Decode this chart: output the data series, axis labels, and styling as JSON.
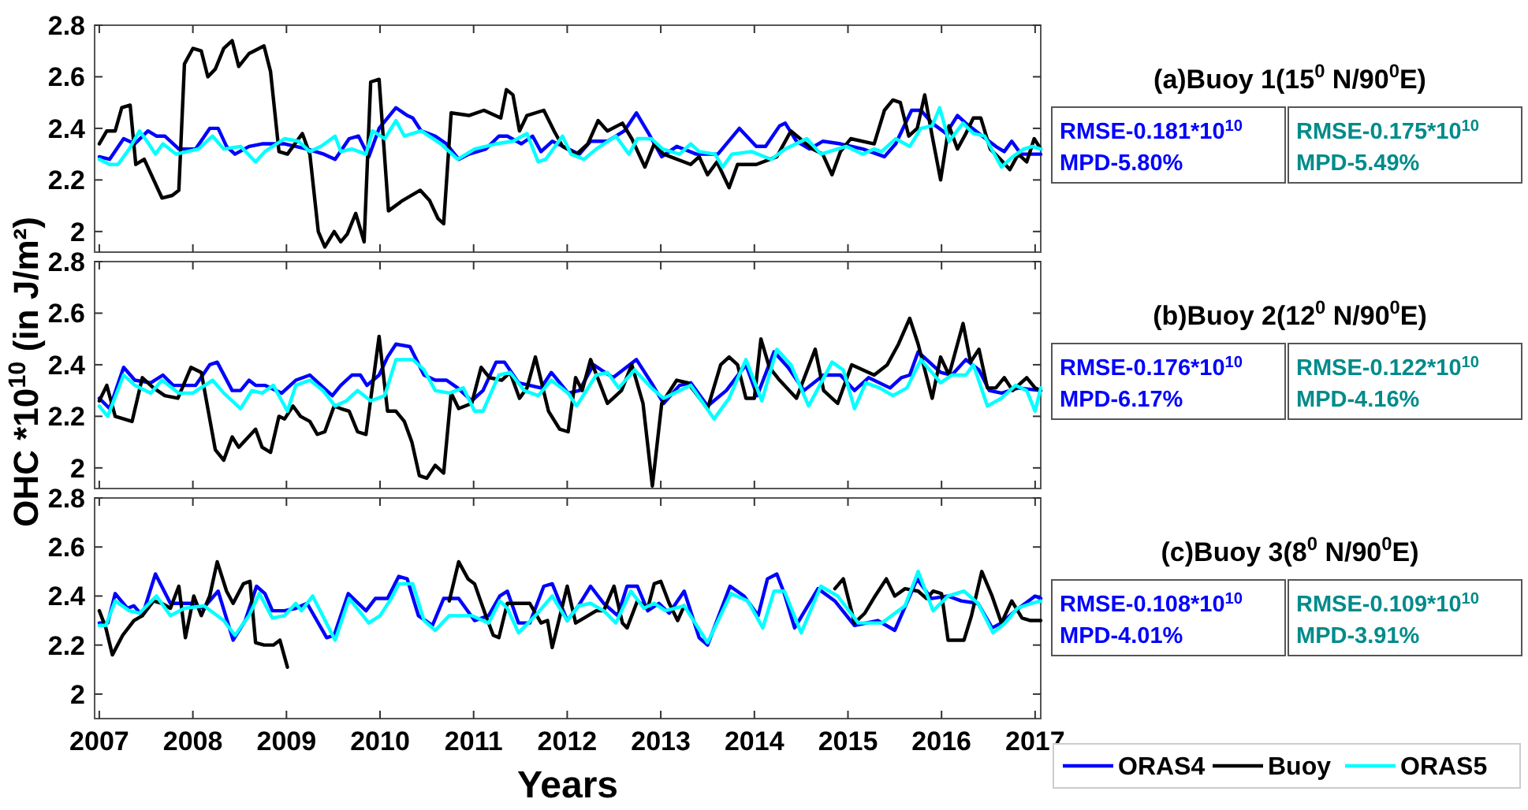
{
  "chart_data": [
    {
      "type": "line",
      "xlim": [
        2006.95,
        2017.06
      ],
      "xticks": [
        2007,
        2008,
        2009,
        2010,
        2011,
        2012,
        2013,
        2014,
        2015,
        2016,
        2017
      ],
      "ylim": [
        1.92,
        2.8
      ],
      "yticks": [
        2,
        2.2,
        2.4,
        2.6,
        2.8
      ],
      "tick_labels": "y",
      "annotations": [
        "(a)Buoy 1(15$^{0}$ N/90$^{0}$E)",
        "RMSE-0.181*10$^{10}$",
        "MPD-5.80%",
        "RMSE-0.175*10$^{10}$",
        "MPD-5.49%"
      ],
      "series": [
        {
          "color": "#0000ff",
          "x": [
            2007.0,
            2007.11,
            2007.26,
            2007.38,
            2007.52,
            2007.61,
            2007.7,
            2007.85,
            2008.03,
            2008.18,
            2008.27,
            2008.36,
            2008.45,
            2008.6,
            2008.74,
            2008.98,
            2009.22,
            2009.4,
            2009.52,
            2009.67,
            2009.77,
            2009.88,
            2009.99,
            2010.17,
            2010.29,
            2010.35,
            2010.44,
            2010.59,
            2010.71,
            2010.84,
            2010.95,
            2011.13,
            2011.27,
            2011.36,
            2011.51,
            2011.63,
            2011.72,
            2011.84,
            2012.13,
            2012.25,
            2012.43,
            2012.61,
            2012.74,
            2012.87,
            2013.01,
            2013.17,
            2013.38,
            2013.61,
            2013.84,
            2014.02,
            2014.12,
            2014.27,
            2014.33,
            2014.45,
            2014.59,
            2014.73,
            2014.92,
            2015.16,
            2015.39,
            2015.51,
            2015.68,
            2015.78,
            2015.9,
            2016.05,
            2016.17,
            2016.26,
            2016.4,
            2016.58,
            2016.67,
            2016.75,
            2016.85,
            2017.06
          ],
          "values": [
            2.29,
            2.28,
            2.36,
            2.34,
            2.39,
            2.37,
            2.37,
            2.32,
            2.32,
            2.4,
            2.4,
            2.33,
            2.3,
            2.33,
            2.34,
            2.34,
            2.32,
            2.3,
            2.28,
            2.36,
            2.37,
            2.29,
            2.4,
            2.48,
            2.45,
            2.44,
            2.39,
            2.37,
            2.34,
            2.28,
            2.3,
            2.32,
            2.37,
            2.37,
            2.34,
            2.37,
            2.31,
            2.35,
            2.3,
            2.35,
            2.35,
            2.39,
            2.46,
            2.38,
            2.29,
            2.33,
            2.3,
            2.3,
            2.4,
            2.33,
            2.33,
            2.41,
            2.42,
            2.35,
            2.32,
            2.35,
            2.34,
            2.32,
            2.29,
            2.34,
            2.47,
            2.47,
            2.42,
            2.38,
            2.45,
            2.42,
            2.38,
            2.33,
            2.31,
            2.35,
            2.3,
            2.3
          ]
        },
        {
          "color": "#000000",
          "x": [
            2007.0,
            2007.08,
            2007.17,
            2007.24,
            2007.33,
            2007.39,
            2007.48,
            2007.67,
            2007.78,
            2007.85,
            2007.91,
            2008.0,
            2008.09,
            2008.16,
            2008.24,
            2008.33,
            2008.42,
            2008.49,
            2008.6,
            2008.76,
            2008.83,
            2008.92,
            2009.01,
            2009.17,
            2009.25,
            2009.34,
            2009.41,
            2009.51,
            2009.58,
            2009.65,
            2009.74,
            2009.83,
            2009.9,
            2009.99,
            2010.09,
            2010.24,
            2010.43,
            2010.53,
            2010.62,
            2010.68,
            2010.76,
            2010.95,
            2011.11,
            2011.29,
            2011.35,
            2011.42,
            2011.49,
            2011.57,
            2011.75,
            2011.86,
            2011.95,
            2012.1,
            2012.22,
            2012.33,
            2012.43,
            2012.59,
            2012.69,
            2012.83,
            2012.93,
            2013.03,
            2013.32,
            2013.41,
            2013.5,
            2013.6,
            2013.73,
            2013.82,
            2014.02,
            2014.24,
            2014.39,
            2014.62,
            2014.73,
            2014.83,
            2014.92,
            2015.03,
            2015.28,
            2015.39,
            2015.48,
            2015.56,
            2015.65,
            2015.74,
            2015.82,
            2015.9,
            2015.99,
            2016.08,
            2016.17,
            2016.26,
            2016.34,
            2016.42,
            2016.52,
            2016.63,
            2016.73,
            2016.82,
            2016.91,
            2016.99,
            2017.06
          ],
          "values": [
            2.34,
            2.39,
            2.39,
            2.48,
            2.49,
            2.26,
            2.28,
            2.13,
            2.14,
            2.16,
            2.65,
            2.71,
            2.7,
            2.6,
            2.63,
            2.71,
            2.74,
            2.64,
            2.69,
            2.72,
            2.62,
            2.31,
            2.3,
            2.38,
            2.3,
            2.0,
            1.94,
            2.0,
            1.96,
            1.99,
            2.07,
            1.96,
            2.58,
            2.59,
            2.08,
            2.12,
            2.16,
            2.12,
            2.05,
            2.03,
            2.46,
            2.45,
            2.47,
            2.44,
            2.55,
            2.53,
            2.39,
            2.45,
            2.47,
            2.39,
            2.33,
            2.3,
            2.34,
            2.43,
            2.39,
            2.42,
            2.36,
            2.25,
            2.34,
            2.3,
            2.26,
            2.29,
            2.22,
            2.27,
            2.17,
            2.26,
            2.26,
            2.29,
            2.39,
            2.32,
            2.3,
            2.22,
            2.31,
            2.36,
            2.34,
            2.47,
            2.51,
            2.5,
            2.37,
            2.4,
            2.53,
            2.37,
            2.2,
            2.41,
            2.32,
            2.38,
            2.44,
            2.44,
            2.32,
            2.28,
            2.24,
            2.3,
            2.27,
            2.36,
            2.32
          ]
        },
        {
          "color": "#00ffff",
          "x": [
            2007.0,
            2007.11,
            2007.2,
            2007.32,
            2007.43,
            2007.51,
            2007.6,
            2007.68,
            2007.82,
            2008.06,
            2008.21,
            2008.33,
            2008.51,
            2008.67,
            2008.77,
            2008.98,
            2009.13,
            2009.25,
            2009.37,
            2009.52,
            2009.58,
            2009.7,
            2009.85,
            2009.92,
            2010.05,
            2010.17,
            2010.26,
            2010.44,
            2010.65,
            2010.83,
            2011.01,
            2011.24,
            2011.42,
            2011.57,
            2011.69,
            2011.77,
            2011.95,
            2012.04,
            2012.18,
            2012.31,
            2012.52,
            2012.66,
            2012.75,
            2012.9,
            2013.02,
            2013.2,
            2013.32,
            2013.41,
            2013.58,
            2013.66,
            2013.76,
            2013.97,
            2014.18,
            2014.33,
            2014.56,
            2014.71,
            2014.98,
            2015.16,
            2015.28,
            2015.36,
            2015.51,
            2015.66,
            2015.78,
            2015.9,
            2015.98,
            2016.08,
            2016.23,
            2016.34,
            2016.46,
            2016.64,
            2016.76,
            2016.88,
            2016.97,
            2017.06
          ],
          "values": [
            2.28,
            2.26,
            2.26,
            2.32,
            2.39,
            2.35,
            2.3,
            2.34,
            2.3,
            2.32,
            2.37,
            2.32,
            2.33,
            2.27,
            2.31,
            2.36,
            2.35,
            2.31,
            2.33,
            2.37,
            2.31,
            2.32,
            2.3,
            2.39,
            2.36,
            2.43,
            2.37,
            2.39,
            2.34,
            2.28,
            2.32,
            2.34,
            2.35,
            2.38,
            2.27,
            2.28,
            2.37,
            2.3,
            2.28,
            2.32,
            2.37,
            2.3,
            2.36,
            2.36,
            2.32,
            2.3,
            2.34,
            2.31,
            2.3,
            2.25,
            2.3,
            2.31,
            2.28,
            2.32,
            2.36,
            2.3,
            2.33,
            2.3,
            2.32,
            2.31,
            2.36,
            2.33,
            2.4,
            2.41,
            2.48,
            2.35,
            2.42,
            2.38,
            2.37,
            2.25,
            2.29,
            2.32,
            2.33,
            2.32
          ]
        }
      ]
    },
    {
      "type": "line",
      "ylabel": "OHC *10$^{10}$ (in J/m²)",
      "xlim": [
        2006.95,
        2017.06
      ],
      "xticks": [
        2007,
        2008,
        2009,
        2010,
        2011,
        2012,
        2013,
        2014,
        2015,
        2016,
        2017
      ],
      "ylim": [
        1.92,
        2.8
      ],
      "yticks": [
        2,
        2.2,
        2.4,
        2.6,
        2.8
      ],
      "tick_labels": "y",
      "annotations": [
        "(b)Buoy 2(12$^{0}$ N/90$^{0}$E)",
        "RMSE-0.176*10$^{10}$",
        "MPD-6.17%",
        "RMSE-0.122*10$^{10}$",
        "MPD-4.16%"
      ],
      "series": [
        {
          "color": "#0000ff",
          "x": [
            2007.0,
            2007.11,
            2007.26,
            2007.38,
            2007.55,
            2007.68,
            2007.79,
            2008.03,
            2008.18,
            2008.26,
            2008.42,
            2008.51,
            2008.6,
            2008.67,
            2008.77,
            2008.95,
            2009.1,
            2009.25,
            2009.37,
            2009.49,
            2009.58,
            2009.7,
            2009.79,
            2009.86,
            2009.99,
            2010.08,
            2010.17,
            2010.32,
            2010.47,
            2010.59,
            2010.71,
            2010.83,
            2010.98,
            2011.1,
            2011.24,
            2011.33,
            2011.48,
            2011.6,
            2011.72,
            2011.83,
            2012.01,
            2012.13,
            2012.28,
            2012.49,
            2012.74,
            2012.9,
            2013.03,
            2013.2,
            2013.32,
            2013.5,
            2013.7,
            2013.91,
            2014.03,
            2014.21,
            2014.36,
            2014.53,
            2014.74,
            2014.92,
            2015.07,
            2015.22,
            2015.45,
            2015.57,
            2015.66,
            2015.75,
            2015.87,
            2015.99,
            2016.11,
            2016.26,
            2016.4,
            2016.51,
            2016.64,
            2016.82,
            2017.06
          ],
          "values": [
            2.27,
            2.23,
            2.39,
            2.34,
            2.33,
            2.36,
            2.32,
            2.32,
            2.4,
            2.41,
            2.3,
            2.3,
            2.34,
            2.32,
            2.32,
            2.29,
            2.34,
            2.36,
            2.32,
            2.28,
            2.32,
            2.36,
            2.36,
            2.32,
            2.36,
            2.43,
            2.48,
            2.47,
            2.36,
            2.34,
            2.34,
            2.31,
            2.26,
            2.3,
            2.41,
            2.41,
            2.33,
            2.32,
            2.31,
            2.37,
            2.29,
            2.3,
            2.4,
            2.35,
            2.42,
            2.33,
            2.25,
            2.32,
            2.33,
            2.24,
            2.3,
            2.4,
            2.28,
            2.45,
            2.39,
            2.3,
            2.36,
            2.36,
            2.3,
            2.35,
            2.31,
            2.35,
            2.36,
            2.45,
            2.41,
            2.37,
            2.36,
            2.42,
            2.38,
            2.3,
            2.29,
            2.31,
            2.3
          ]
        },
        {
          "color": "#000000",
          "x": [
            2007.0,
            2007.08,
            2007.17,
            2007.35,
            2007.46,
            2007.58,
            2007.7,
            2007.84,
            2007.98,
            2008.09,
            2008.24,
            2008.33,
            2008.42,
            2008.49,
            2008.67,
            2008.74,
            2008.83,
            2008.92,
            2008.98,
            2009.07,
            2009.15,
            2009.25,
            2009.33,
            2009.41,
            2009.51,
            2009.58,
            2009.67,
            2009.76,
            2009.85,
            2009.99,
            2010.08,
            2010.17,
            2010.26,
            2010.34,
            2010.42,
            2010.5,
            2010.59,
            2010.68,
            2010.76,
            2010.84,
            2010.98,
            2011.08,
            2011.17,
            2011.3,
            2011.39,
            2011.49,
            2011.57,
            2011.66,
            2011.8,
            2011.92,
            2012.01,
            2012.09,
            2012.16,
            2012.25,
            2012.43,
            2012.58,
            2012.69,
            2012.81,
            2012.91,
            2013.01,
            2013.17,
            2013.29,
            2013.5,
            2013.64,
            2013.73,
            2013.82,
            2013.91,
            2014.0,
            2014.07,
            2014.16,
            2014.27,
            2014.45,
            2014.65,
            2014.74,
            2014.89,
            2015.04,
            2015.16,
            2015.28,
            2015.42,
            2015.54,
            2015.66,
            2015.75,
            2015.9,
            2015.99,
            2016.08,
            2016.23,
            2016.31,
            2016.4,
            2016.49,
            2016.58,
            2016.67,
            2016.76,
            2016.91,
            2017.0,
            2017.06
          ],
          "values": [
            2.26,
            2.32,
            2.2,
            2.18,
            2.35,
            2.31,
            2.28,
            2.27,
            2.39,
            2.37,
            2.07,
            2.03,
            2.12,
            2.08,
            2.15,
            2.08,
            2.06,
            2.2,
            2.19,
            2.24,
            2.2,
            2.18,
            2.13,
            2.14,
            2.24,
            2.23,
            2.22,
            2.14,
            2.13,
            2.51,
            2.22,
            2.22,
            2.18,
            2.1,
            1.97,
            1.96,
            2.01,
            1.98,
            2.29,
            2.23,
            2.25,
            2.39,
            2.35,
            2.34,
            2.37,
            2.27,
            2.31,
            2.43,
            2.22,
            2.15,
            2.14,
            2.35,
            2.3,
            2.42,
            2.25,
            2.3,
            2.4,
            2.25,
            1.93,
            2.25,
            2.34,
            2.33,
            2.23,
            2.4,
            2.43,
            2.4,
            2.27,
            2.27,
            2.5,
            2.39,
            2.34,
            2.27,
            2.46,
            2.3,
            2.25,
            2.4,
            2.38,
            2.36,
            2.4,
            2.48,
            2.58,
            2.48,
            2.27,
            2.43,
            2.36,
            2.56,
            2.41,
            2.46,
            2.31,
            2.31,
            2.35,
            2.3,
            2.35,
            2.31,
            2.3
          ]
        },
        {
          "color": "#00ffff",
          "x": [
            2007.0,
            2007.09,
            2007.26,
            2007.38,
            2007.55,
            2007.67,
            2007.85,
            2008.0,
            2008.21,
            2008.33,
            2008.51,
            2008.63,
            2008.74,
            2008.86,
            2009.01,
            2009.1,
            2009.25,
            2009.39,
            2009.52,
            2009.64,
            2009.76,
            2009.9,
            2010.05,
            2010.17,
            2010.35,
            2010.47,
            2010.59,
            2010.74,
            2010.89,
            2011.01,
            2011.1,
            2011.27,
            2011.39,
            2011.54,
            2011.69,
            2011.83,
            2012.01,
            2012.1,
            2012.31,
            2012.43,
            2012.55,
            2012.72,
            2012.9,
            2013.03,
            2013.32,
            2013.57,
            2013.73,
            2013.91,
            2014.08,
            2014.24,
            2014.39,
            2014.58,
            2014.83,
            2014.95,
            2015.07,
            2015.19,
            2015.34,
            2015.48,
            2015.63,
            2015.78,
            2015.99,
            2016.11,
            2016.26,
            2016.34,
            2016.49,
            2016.64,
            2016.79,
            2016.91,
            2017.0,
            2017.06
          ],
          "values": [
            2.24,
            2.2,
            2.36,
            2.32,
            2.29,
            2.34,
            2.29,
            2.29,
            2.34,
            2.29,
            2.23,
            2.3,
            2.29,
            2.32,
            2.22,
            2.32,
            2.34,
            2.3,
            2.24,
            2.26,
            2.3,
            2.26,
            2.28,
            2.42,
            2.42,
            2.38,
            2.3,
            2.29,
            2.31,
            2.22,
            2.22,
            2.36,
            2.37,
            2.3,
            2.28,
            2.34,
            2.29,
            2.24,
            2.36,
            2.37,
            2.31,
            2.38,
            2.31,
            2.27,
            2.32,
            2.19,
            2.27,
            2.42,
            2.26,
            2.46,
            2.4,
            2.24,
            2.41,
            2.38,
            2.23,
            2.33,
            2.31,
            2.28,
            2.31,
            2.42,
            2.33,
            2.36,
            2.36,
            2.4,
            2.24,
            2.27,
            2.32,
            2.3,
            2.22,
            2.31
          ]
        }
      ]
    },
    {
      "type": "line",
      "xlabel": "Years",
      "xlim": [
        2006.95,
        2017.06
      ],
      "xticks": [
        2007,
        2008,
        2009,
        2010,
        2011,
        2012,
        2013,
        2014,
        2015,
        2016,
        2017
      ],
      "ylim": [
        1.9,
        2.8
      ],
      "yticks": [
        2,
        2.2,
        2.4,
        2.6,
        2.8
      ],
      "legend": "bottom right",
      "annotations": [
        "(c)Buoy 3(8$^{0}$ N/90$^{0}$E)",
        "RMSE-0.108*10$^{10}$",
        "MPD-4.01%",
        "RMSE-0.109*10$^{10}$",
        "MPD-3.91%"
      ],
      "series": [
        {
          "name": "ORAS4",
          "color": "#0000ff",
          "x": [
            2007.0,
            2007.09,
            2007.17,
            2007.3,
            2007.37,
            2007.46,
            2007.6,
            2007.76,
            2007.85,
            2007.97,
            2008.11,
            2008.27,
            2008.43,
            2008.56,
            2008.68,
            2008.77,
            2008.85,
            2008.98,
            2009.1,
            2009.22,
            2009.43,
            2009.51,
            2009.66,
            2009.85,
            2009.95,
            2010.08,
            2010.2,
            2010.29,
            2010.41,
            2010.56,
            2010.68,
            2010.84,
            2011.01,
            2011.16,
            2011.28,
            2011.36,
            2011.48,
            2011.6,
            2011.75,
            2011.84,
            2012.0,
            2012.12,
            2012.25,
            2012.39,
            2012.54,
            2012.64,
            2012.75,
            2012.86,
            2012.98,
            2013.09,
            2013.25,
            2013.41,
            2013.5,
            2013.74,
            2013.89,
            2014.04,
            2014.14,
            2014.24,
            2014.32,
            2014.43,
            2014.68,
            2014.86,
            2015.07,
            2015.32,
            2015.5,
            2015.74,
            2015.89,
            2016.07,
            2016.21,
            2016.39,
            2016.54,
            2016.64,
            2016.79,
            2017.0,
            2017.06
          ],
          "values": [
            2.29,
            2.29,
            2.41,
            2.35,
            2.36,
            2.32,
            2.49,
            2.37,
            2.37,
            2.37,
            2.35,
            2.42,
            2.22,
            2.3,
            2.44,
            2.41,
            2.34,
            2.34,
            2.35,
            2.37,
            2.23,
            2.24,
            2.41,
            2.34,
            2.39,
            2.39,
            2.48,
            2.47,
            2.32,
            2.28,
            2.39,
            2.39,
            2.3,
            2.32,
            2.4,
            2.42,
            2.29,
            2.29,
            2.44,
            2.45,
            2.3,
            2.36,
            2.44,
            2.37,
            2.32,
            2.44,
            2.44,
            2.34,
            2.37,
            2.33,
            2.42,
            2.23,
            2.2,
            2.44,
            2.4,
            2.32,
            2.47,
            2.49,
            2.41,
            2.27,
            2.43,
            2.38,
            2.28,
            2.3,
            2.26,
            2.47,
            2.39,
            2.4,
            2.38,
            2.37,
            2.27,
            2.29,
            2.34,
            2.4,
            2.39
          ]
        },
        {
          "name": "Buoy",
          "color": "#000000",
          "x": [
            2007.0,
            2007.07,
            2007.14,
            2007.25,
            2007.37,
            2007.46,
            2007.58,
            2007.67,
            2007.76,
            2007.85,
            2007.92,
            2008.01,
            2008.09,
            2008.18,
            2008.26,
            2008.36,
            2008.43,
            2008.54,
            2008.61,
            2008.67,
            2008.76,
            2008.86,
            2008.93,
            2009.01,
            2009.9,
            2010.74,
            2010.84,
            2010.94,
            2011.01,
            2011.13,
            2011.21,
            2011.27,
            2011.36,
            2011.6,
            2011.72,
            2011.79,
            2011.84,
            2012.0,
            2012.09,
            2012.18,
            2012.31,
            2012.39,
            2012.5,
            2012.59,
            2012.64,
            2012.75,
            2012.86,
            2012.93,
            2013.0,
            2013.09,
            2013.18,
            2013.25,
            2014.0,
            2014.86,
            2014.95,
            2015.07,
            2015.18,
            2015.29,
            2015.41,
            2015.5,
            2015.61,
            2015.75,
            2015.84,
            2015.91,
            2016.0,
            2016.07,
            2016.24,
            2016.32,
            2016.43,
            2016.54,
            2016.64,
            2016.75,
            2016.86,
            2016.95,
            2017.06
          ],
          "values": [
            2.34,
            2.27,
            2.16,
            2.24,
            2.3,
            2.32,
            2.38,
            2.37,
            2.35,
            2.44,
            2.23,
            2.4,
            2.32,
            2.4,
            2.54,
            2.42,
            2.37,
            2.45,
            2.46,
            2.21,
            2.2,
            2.2,
            2.22,
            2.11,
            null,
            2.38,
            2.54,
            2.47,
            2.45,
            2.32,
            2.24,
            2.23,
            2.37,
            2.37,
            2.29,
            2.3,
            2.19,
            2.44,
            2.29,
            2.31,
            2.34,
            2.34,
            2.44,
            2.29,
            2.27,
            2.38,
            2.35,
            2.45,
            2.46,
            2.37,
            2.3,
            2.36,
            null,
            2.43,
            2.47,
            2.29,
            2.33,
            2.4,
            2.47,
            2.4,
            2.43,
            2.42,
            2.39,
            2.42,
            2.41,
            2.22,
            2.22,
            2.32,
            2.5,
            2.4,
            2.29,
            2.38,
            2.31,
            2.3,
            2.3
          ]
        },
        {
          "name": "ORAS5",
          "color": "#00ffff",
          "x": [
            2007.0,
            2007.07,
            2007.17,
            2007.32,
            2007.43,
            2007.61,
            2007.76,
            2007.91,
            2008.12,
            2008.33,
            2008.45,
            2008.6,
            2008.71,
            2008.85,
            2008.98,
            2009.1,
            2009.16,
            2009.28,
            2009.52,
            2009.67,
            2009.88,
            2010.0,
            2010.12,
            2010.2,
            2010.35,
            2010.47,
            2010.59,
            2010.74,
            2010.98,
            2011.16,
            2011.28,
            2011.36,
            2011.48,
            2011.66,
            2011.84,
            2012.0,
            2012.12,
            2012.25,
            2012.39,
            2012.52,
            2012.68,
            2012.82,
            2012.93,
            2013.05,
            2013.25,
            2013.5,
            2013.75,
            2013.93,
            2014.09,
            2014.21,
            2014.32,
            2014.5,
            2014.71,
            2014.89,
            2015.11,
            2015.36,
            2015.61,
            2015.75,
            2015.91,
            2016.07,
            2016.24,
            2016.39,
            2016.55,
            2016.68,
            2016.81,
            2016.96,
            2017.06
          ],
          "values": [
            2.28,
            2.28,
            2.38,
            2.34,
            2.33,
            2.4,
            2.32,
            2.35,
            2.36,
            2.3,
            2.24,
            2.32,
            2.41,
            2.31,
            2.32,
            2.37,
            2.34,
            2.4,
            2.22,
            2.39,
            2.29,
            2.32,
            2.39,
            2.45,
            2.45,
            2.3,
            2.26,
            2.32,
            2.32,
            2.29,
            2.38,
            2.35,
            2.25,
            2.32,
            2.4,
            2.3,
            2.36,
            2.37,
            2.34,
            2.29,
            2.42,
            2.35,
            2.37,
            2.34,
            2.36,
            2.21,
            2.41,
            2.38,
            2.27,
            2.42,
            2.42,
            2.25,
            2.44,
            2.4,
            2.29,
            2.29,
            2.36,
            2.5,
            2.34,
            2.4,
            2.42,
            2.37,
            2.25,
            2.29,
            2.35,
            2.37,
            2.38
          ]
        }
      ]
    }
  ]
}
